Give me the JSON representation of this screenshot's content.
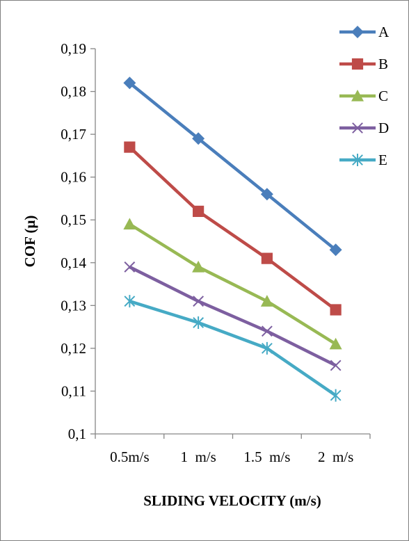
{
  "chart_data": {
    "type": "line",
    "title": "",
    "xlabel": "SLIDING VELOCITY (m/s)",
    "ylabel": "COF (μ)",
    "categories": [
      "0.5m/s",
      "1  m/s",
      "1.5  m/s",
      "2  m/s"
    ],
    "ylim": [
      0.1,
      0.19
    ],
    "yticks": [
      0.1,
      0.11,
      0.12,
      0.13,
      0.14,
      0.15,
      0.16,
      0.17,
      0.18,
      0.19
    ],
    "ytick_labels": [
      "0,1",
      "0,11",
      "0,12",
      "0,13",
      "0,14",
      "0,15",
      "0,16",
      "0,17",
      "0,18",
      "0,19"
    ],
    "grid": false,
    "legend_position": "top-right",
    "series": [
      {
        "name": "A",
        "values": [
          0.182,
          0.169,
          0.156,
          0.143
        ],
        "color": "#4a7ebb",
        "marker": "diamond"
      },
      {
        "name": "B",
        "values": [
          0.167,
          0.152,
          0.141,
          0.129
        ],
        "color": "#be4b48",
        "marker": "square"
      },
      {
        "name": "C",
        "values": [
          0.149,
          0.139,
          0.131,
          0.121
        ],
        "color": "#98b954",
        "marker": "triangle"
      },
      {
        "name": "D",
        "values": [
          0.139,
          0.131,
          0.124,
          0.116
        ],
        "color": "#7d5fa0",
        "marker": "x"
      },
      {
        "name": "E",
        "values": [
          0.131,
          0.126,
          0.12,
          0.109
        ],
        "color": "#46aac5",
        "marker": "star"
      }
    ]
  }
}
